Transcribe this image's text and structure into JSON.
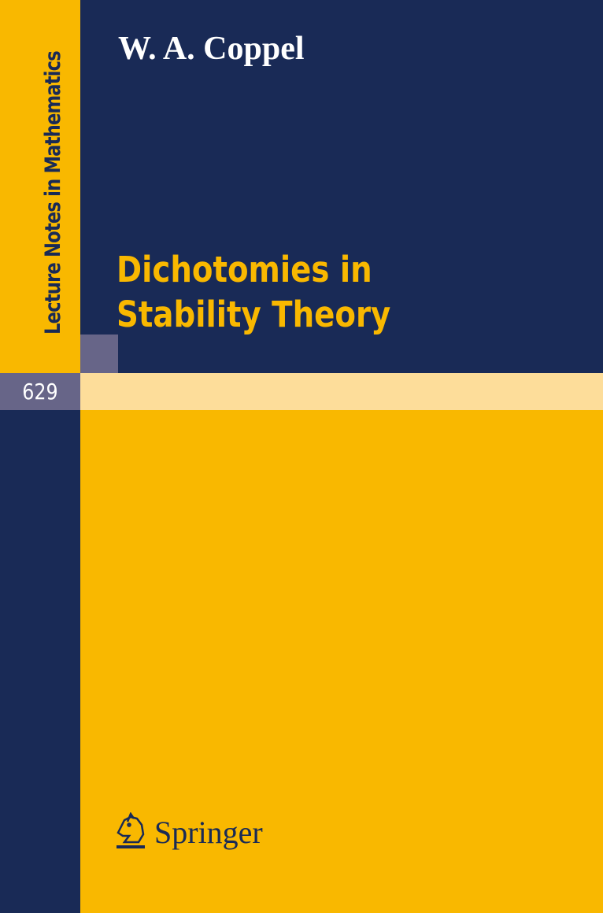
{
  "series": "Lecture Notes in Mathematics",
  "volume": "629",
  "author": "W. A. Coppel",
  "title_lines": [
    "Dichotomies in",
    "Stability Theory"
  ],
  "publisher": "Springer",
  "colors": {
    "navy": "#192a56",
    "yellow": "#f9b800",
    "grey": "#676588",
    "light_yellow": "#fddd9a"
  }
}
